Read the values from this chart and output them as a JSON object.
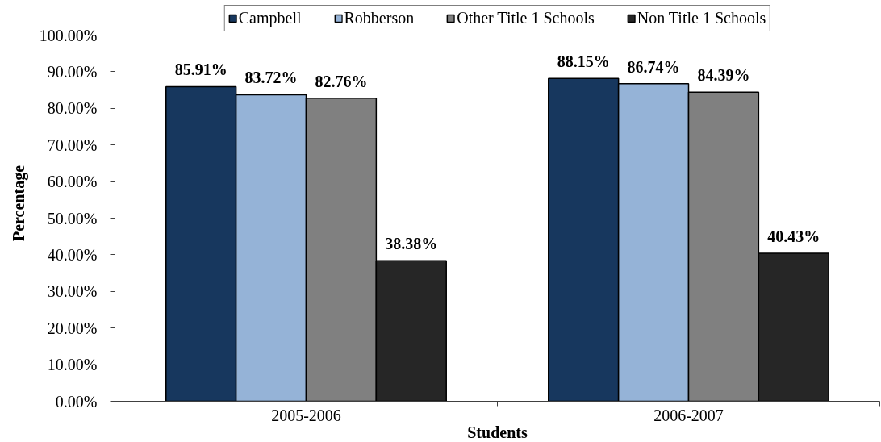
{
  "chart_data": {
    "type": "bar",
    "categories": [
      "2005-2006",
      "2006-2007"
    ],
    "xlabel": "Students",
    "ylabel": "Percentage",
    "ylim": [
      0,
      100
    ],
    "yticks": [
      {
        "value": 0,
        "label": "0.00%"
      },
      {
        "value": 10,
        "label": "10.00%"
      },
      {
        "value": 20,
        "label": "20.00%"
      },
      {
        "value": 30,
        "label": "30.00%"
      },
      {
        "value": 40,
        "label": "40.00%"
      },
      {
        "value": 50,
        "label": "50.00%"
      },
      {
        "value": 60,
        "label": "60.00%"
      },
      {
        "value": 70,
        "label": "70.00%"
      },
      {
        "value": 80,
        "label": "80.00%"
      },
      {
        "value": 90,
        "label": "90.00%"
      },
      {
        "value": 100,
        "label": "100.00%"
      }
    ],
    "grid": false,
    "legend": "top",
    "series": [
      {
        "name": "Campbell",
        "color": "#17375e",
        "values": [
          85.91,
          88.15
        ],
        "value_labels": [
          "85.91%",
          "88.15%"
        ]
      },
      {
        "name": "Robberson",
        "color": "#95b3d7",
        "values": [
          83.72,
          86.74
        ],
        "value_labels": [
          "83.72%",
          "86.74%"
        ]
      },
      {
        "name": "Other Title 1 Schools",
        "color": "#808080",
        "values": [
          82.76,
          84.39
        ],
        "value_labels": [
          "82.76%",
          "84.39%"
        ]
      },
      {
        "name": "Non Title 1 Schools",
        "color": "#262626",
        "values": [
          38.38,
          40.43
        ],
        "value_labels": [
          "38.38%",
          "40.43%"
        ]
      }
    ]
  }
}
